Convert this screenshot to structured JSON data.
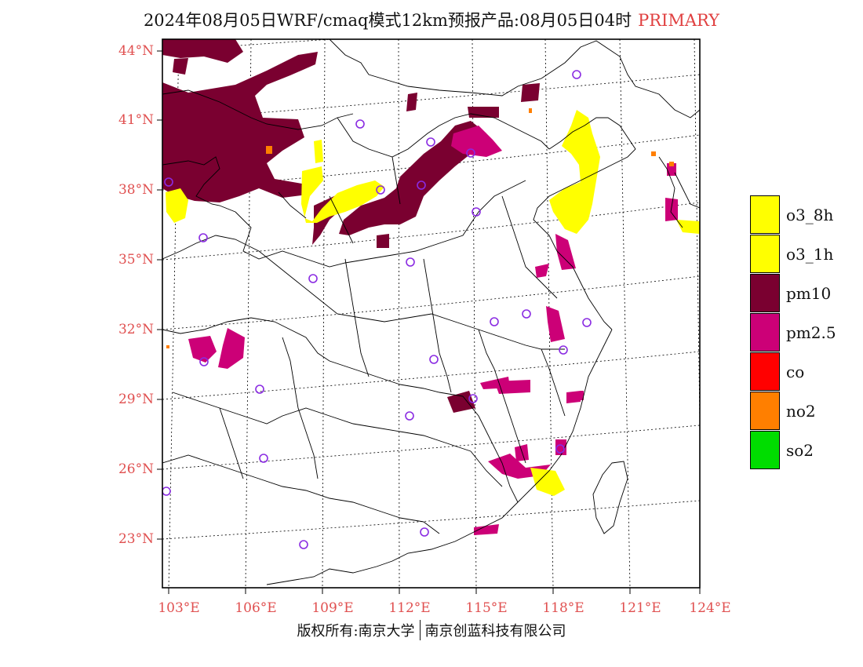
{
  "title": {
    "main": "2024年08月05日WRF/cmaq模式12km预报产品:08月05日04时",
    "tag": "PRIMARY"
  },
  "axes": {
    "lat_labels": [
      "44°N",
      "41°N",
      "38°N",
      "35°N",
      "32°N",
      "29°N",
      "26°N",
      "23°N"
    ],
    "lon_labels": [
      "103°E",
      "106°E",
      "109°E",
      "112°E",
      "115°E",
      "118°E",
      "121°E",
      "124°E"
    ]
  },
  "legend": {
    "items": [
      {
        "label": "o3_8h",
        "color": "#ffff00"
      },
      {
        "label": "o3_1h",
        "color": "#ffff00"
      },
      {
        "label": "pm10",
        "color": "#7a0030"
      },
      {
        "label": "pm2.5",
        "color": "#cc0077"
      },
      {
        "label": "co",
        "color": "#ff0000"
      },
      {
        "label": "no2",
        "color": "#ff7f00"
      },
      {
        "label": "so2",
        "color": "#00dd00"
      }
    ]
  },
  "footer": {
    "left": "版权所有:南京大学",
    "right": "南京创蓝科技有限公司"
  },
  "colors": {
    "pm10": "#7a0030",
    "pm25": "#cc0077",
    "o3": "#ffff00",
    "no2": "#ff7f00",
    "axis_label": "#e05050",
    "station": "#8a2be2"
  }
}
